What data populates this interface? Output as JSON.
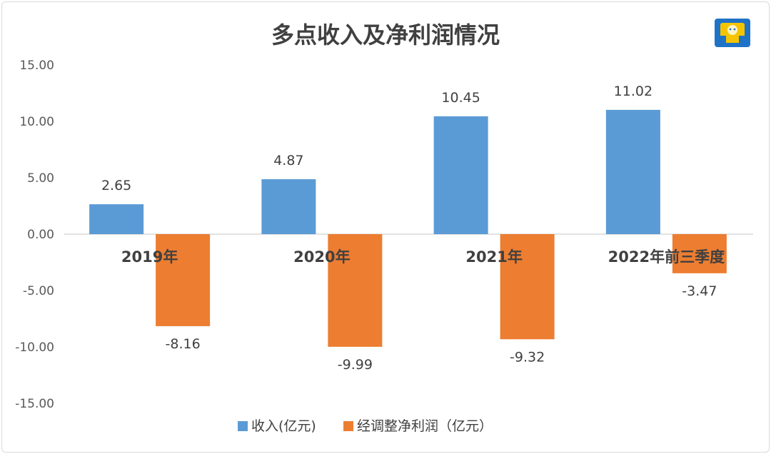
{
  "chart_data": {
    "type": "bar",
    "title": "多点收入及净利润情况",
    "categories": [
      "2019年",
      "2020年",
      "2021年",
      "2022年前三季度"
    ],
    "series": [
      {
        "name": "收入(亿元)",
        "values": [
          2.65,
          4.87,
          10.45,
          11.02
        ],
        "color": "#5b9bd5",
        "labels": [
          "2.65",
          "4.87",
          "10.45",
          "11.02"
        ]
      },
      {
        "name": "经调整净利润（亿元）",
        "values": [
          -8.16,
          -9.99,
          -9.32,
          -3.47
        ],
        "color": "#ed7d31",
        "labels": [
          "-8.16",
          "-9.99",
          "-9.32",
          "-3.47"
        ]
      }
    ],
    "ylim": [
      -15,
      15
    ],
    "yticks": [
      "15.00",
      "10.00",
      "5.00",
      "0.00",
      "-5.00",
      "-10.00",
      "-15.00"
    ],
    "ytick_values": [
      15,
      10,
      5,
      0,
      -5,
      -10,
      -15
    ],
    "grid": false,
    "legend_position": "bottom"
  },
  "logo": {
    "icon": "sun-face-logo-icon",
    "color": "#1f73c7",
    "accent": "#f5c400"
  }
}
